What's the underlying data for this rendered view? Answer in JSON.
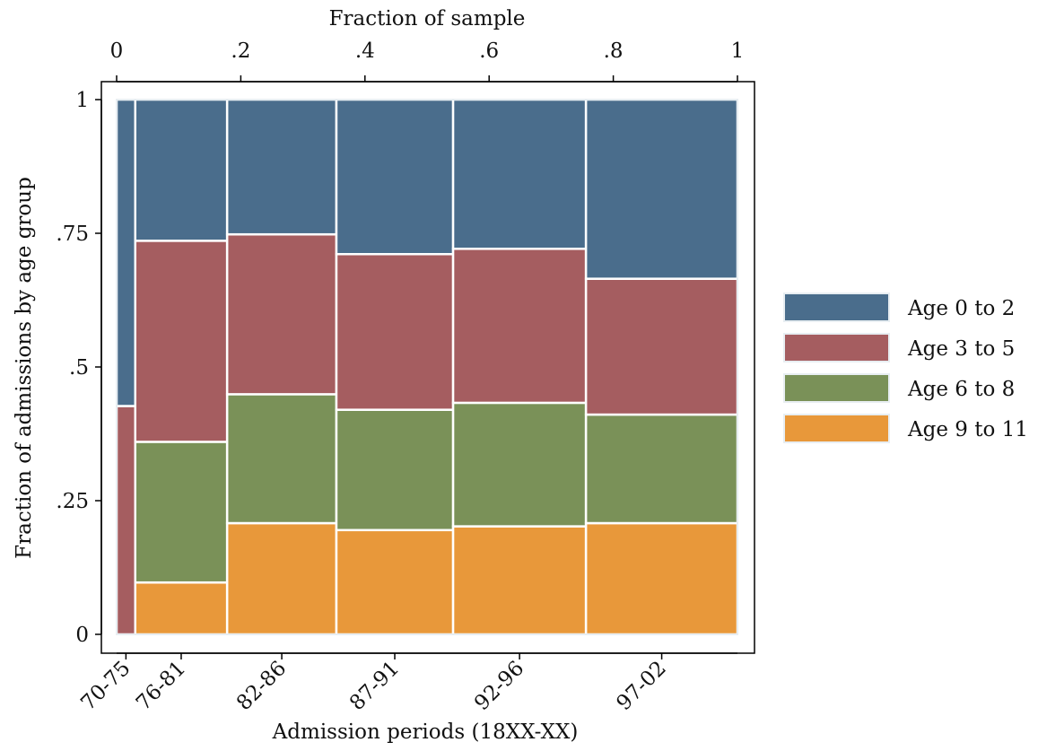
{
  "chart_data": {
    "type": "mosaic",
    "title": "",
    "xlabel": "Admission periods (18XX-XX)",
    "x2label": "Fraction of sample",
    "ylabel": "Fraction of admissions by age group",
    "xlim": [
      0,
      1
    ],
    "ylim": [
      0,
      1
    ],
    "x_ticks": [
      "0",
      ".2",
      ".4",
      ".6",
      ".8",
      "1"
    ],
    "x_tick_values": [
      0,
      0.2,
      0.4,
      0.6,
      0.8,
      1
    ],
    "y_ticks": [
      "0",
      ".25",
      ".5",
      ".75",
      "1"
    ],
    "y_tick_values": [
      0,
      0.25,
      0.5,
      0.75,
      1
    ],
    "categories": [
      "70-75",
      "76-81",
      "82-86",
      "87-91",
      "92-96",
      "97-02"
    ],
    "category_widths": [
      0.03,
      0.148,
      0.176,
      0.188,
      0.214,
      0.244
    ],
    "series": [
      {
        "name": "Age 9 to 11",
        "color": "#e8983a",
        "values": [
          0.0,
          0.097,
          0.208,
          0.195,
          0.202,
          0.208
        ]
      },
      {
        "name": "Age 6 to 8",
        "color": "#7a9158",
        "values": [
          0.0,
          0.263,
          0.241,
          0.225,
          0.231,
          0.203
        ]
      },
      {
        "name": "Age 3 to 5",
        "color": "#a55d60",
        "values": [
          0.427,
          0.376,
          0.299,
          0.291,
          0.288,
          0.254
        ]
      },
      {
        "name": "Age 0 to 2",
        "color": "#4a6d8c",
        "values": [
          0.573,
          0.264,
          0.252,
          0.289,
          0.279,
          0.335
        ]
      }
    ],
    "legend": {
      "position": "right",
      "entries": [
        "Age 0 to 2",
        "Age 3 to 5",
        "Age 6 to 8",
        "Age 9 to 11"
      ]
    },
    "grid": false
  }
}
